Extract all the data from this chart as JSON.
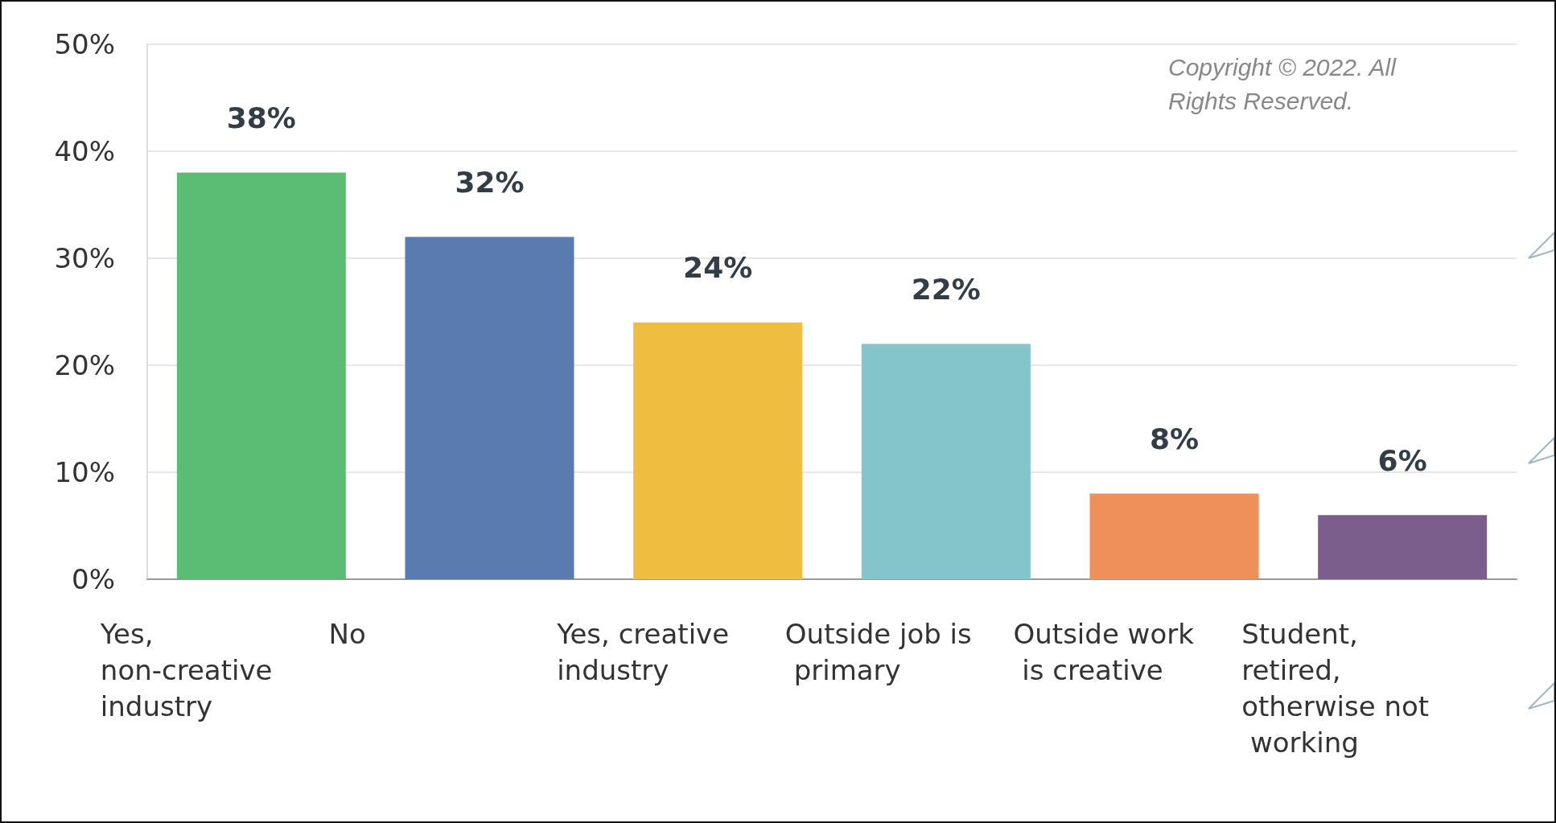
{
  "chart_data": {
    "type": "bar",
    "categories": [
      "Yes, non-creative industry",
      "No",
      "Yes, creative industry",
      "Outside job is primary",
      "Outside work is creative",
      "Student, retired, otherwise not working"
    ],
    "values": [
      38,
      32,
      24,
      22,
      8,
      6
    ],
    "colors": [
      "#5bbd73",
      "#5a7bb0",
      "#efbe41",
      "#83c5cb",
      "#ef8f5a",
      "#7b5e8c"
    ],
    "value_labels": [
      "38%",
      "32%",
      "24%",
      "22%",
      "8%",
      "6%"
    ],
    "ylim": [
      0,
      50
    ],
    "yticks": [
      {
        "value": 0,
        "label": "0%"
      },
      {
        "value": 10,
        "label": "10%"
      },
      {
        "value": 20,
        "label": "20%"
      },
      {
        "value": 30,
        "label": "30%"
      },
      {
        "value": 40,
        "label": "40%"
      },
      {
        "value": 50,
        "label": "50%"
      }
    ],
    "grid": "y",
    "annotations": [
      "Copyright © 2022. All Rights Reserved."
    ]
  }
}
